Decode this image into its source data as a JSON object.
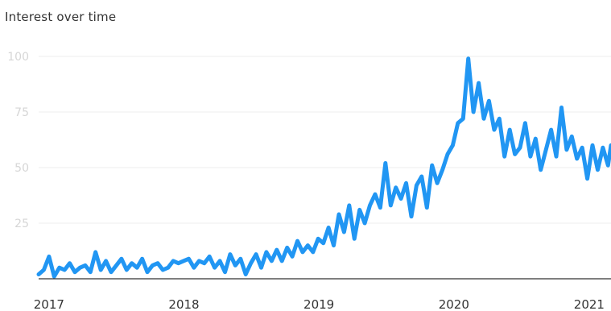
{
  "chart_data": {
    "type": "line",
    "title": "Interest over time",
    "xlabel": "",
    "ylabel": "",
    "ylim": [
      0,
      100
    ],
    "yticks": [
      25,
      50,
      75,
      100
    ],
    "xlim": [
      "2016-12-04",
      "2021-03-01"
    ],
    "xticks": [
      {
        "date": "2017-01-01",
        "label": "2017"
      },
      {
        "date": "2018-01-01",
        "label": "2018"
      },
      {
        "date": "2019-01-01",
        "label": "2019"
      },
      {
        "date": "2020-01-01",
        "label": "2020"
      },
      {
        "date": "2021-01-01",
        "label": "2021"
      }
    ],
    "grid": true,
    "colors": {
      "line": "#2196f3",
      "grid": "#ececec",
      "axis": "#333333",
      "tick_text": "#d6d6d6"
    },
    "series": [
      {
        "name": "",
        "points": [
          [
            "2016-12-04",
            2
          ],
          [
            "2016-12-18",
            4
          ],
          [
            "2017-01-01",
            10
          ],
          [
            "2017-01-15",
            1
          ],
          [
            "2017-01-29",
            5
          ],
          [
            "2017-02-12",
            4
          ],
          [
            "2017-02-26",
            7
          ],
          [
            "2017-03-12",
            3
          ],
          [
            "2017-03-26",
            5
          ],
          [
            "2017-04-09",
            6
          ],
          [
            "2017-04-23",
            3
          ],
          [
            "2017-05-07",
            12
          ],
          [
            "2017-05-21",
            4
          ],
          [
            "2017-06-04",
            8
          ],
          [
            "2017-06-18",
            3
          ],
          [
            "2017-07-02",
            6
          ],
          [
            "2017-07-16",
            9
          ],
          [
            "2017-07-30",
            4
          ],
          [
            "2017-08-13",
            7
          ],
          [
            "2017-08-27",
            5
          ],
          [
            "2017-09-10",
            9
          ],
          [
            "2017-09-24",
            3
          ],
          [
            "2017-10-08",
            6
          ],
          [
            "2017-10-22",
            7
          ],
          [
            "2017-11-05",
            4
          ],
          [
            "2017-11-19",
            5
          ],
          [
            "2017-12-03",
            8
          ],
          [
            "2017-12-17",
            7
          ],
          [
            "2017-12-31",
            8
          ],
          [
            "2018-01-14",
            9
          ],
          [
            "2018-01-28",
            5
          ],
          [
            "2018-02-11",
            8
          ],
          [
            "2018-02-25",
            7
          ],
          [
            "2018-03-11",
            10
          ],
          [
            "2018-03-25",
            5
          ],
          [
            "2018-04-08",
            8
          ],
          [
            "2018-04-22",
            3
          ],
          [
            "2018-05-06",
            11
          ],
          [
            "2018-05-20",
            6
          ],
          [
            "2018-06-03",
            9
          ],
          [
            "2018-06-17",
            2
          ],
          [
            "2018-07-01",
            7
          ],
          [
            "2018-07-15",
            11
          ],
          [
            "2018-07-29",
            5
          ],
          [
            "2018-08-12",
            12
          ],
          [
            "2018-08-26",
            8
          ],
          [
            "2018-09-09",
            13
          ],
          [
            "2018-09-23",
            8
          ],
          [
            "2018-10-07",
            14
          ],
          [
            "2018-10-21",
            10
          ],
          [
            "2018-11-04",
            17
          ],
          [
            "2018-11-18",
            12
          ],
          [
            "2018-12-02",
            15
          ],
          [
            "2018-12-16",
            12
          ],
          [
            "2018-12-30",
            18
          ],
          [
            "2019-01-13",
            16
          ],
          [
            "2019-01-27",
            23
          ],
          [
            "2019-02-10",
            15
          ],
          [
            "2019-02-24",
            29
          ],
          [
            "2019-03-10",
            21
          ],
          [
            "2019-03-24",
            33
          ],
          [
            "2019-04-07",
            18
          ],
          [
            "2019-04-21",
            31
          ],
          [
            "2019-05-05",
            25
          ],
          [
            "2019-05-19",
            33
          ],
          [
            "2019-06-02",
            38
          ],
          [
            "2019-06-16",
            32
          ],
          [
            "2019-06-30",
            52
          ],
          [
            "2019-07-14",
            33
          ],
          [
            "2019-07-28",
            41
          ],
          [
            "2019-08-11",
            36
          ],
          [
            "2019-08-25",
            43
          ],
          [
            "2019-09-08",
            28
          ],
          [
            "2019-09-22",
            42
          ],
          [
            "2019-10-06",
            46
          ],
          [
            "2019-10-20",
            32
          ],
          [
            "2019-11-03",
            51
          ],
          [
            "2019-11-17",
            43
          ],
          [
            "2019-12-01",
            49
          ],
          [
            "2019-12-15",
            56
          ],
          [
            "2019-12-29",
            60
          ],
          [
            "2020-01-12",
            70
          ],
          [
            "2020-01-26",
            72
          ],
          [
            "2020-02-09",
            99
          ],
          [
            "2020-02-23",
            75
          ],
          [
            "2020-03-08",
            88
          ],
          [
            "2020-03-22",
            72
          ],
          [
            "2020-04-05",
            80
          ],
          [
            "2020-04-19",
            67
          ],
          [
            "2020-05-03",
            72
          ],
          [
            "2020-05-17",
            55
          ],
          [
            "2020-05-31",
            67
          ],
          [
            "2020-06-14",
            56
          ],
          [
            "2020-06-28",
            59
          ],
          [
            "2020-07-12",
            70
          ],
          [
            "2020-07-26",
            55
          ],
          [
            "2020-08-09",
            63
          ],
          [
            "2020-08-23",
            49
          ],
          [
            "2020-09-06",
            58
          ],
          [
            "2020-09-20",
            67
          ],
          [
            "2020-10-04",
            55
          ],
          [
            "2020-10-18",
            77
          ],
          [
            "2020-11-01",
            58
          ],
          [
            "2020-11-15",
            64
          ],
          [
            "2020-11-29",
            54
          ],
          [
            "2020-12-13",
            59
          ],
          [
            "2020-12-27",
            45
          ],
          [
            "2021-01-10",
            60
          ],
          [
            "2021-01-24",
            49
          ],
          [
            "2021-02-07",
            59
          ],
          [
            "2021-02-21",
            51
          ],
          [
            "2021-03-01",
            60
          ]
        ]
      }
    ]
  }
}
